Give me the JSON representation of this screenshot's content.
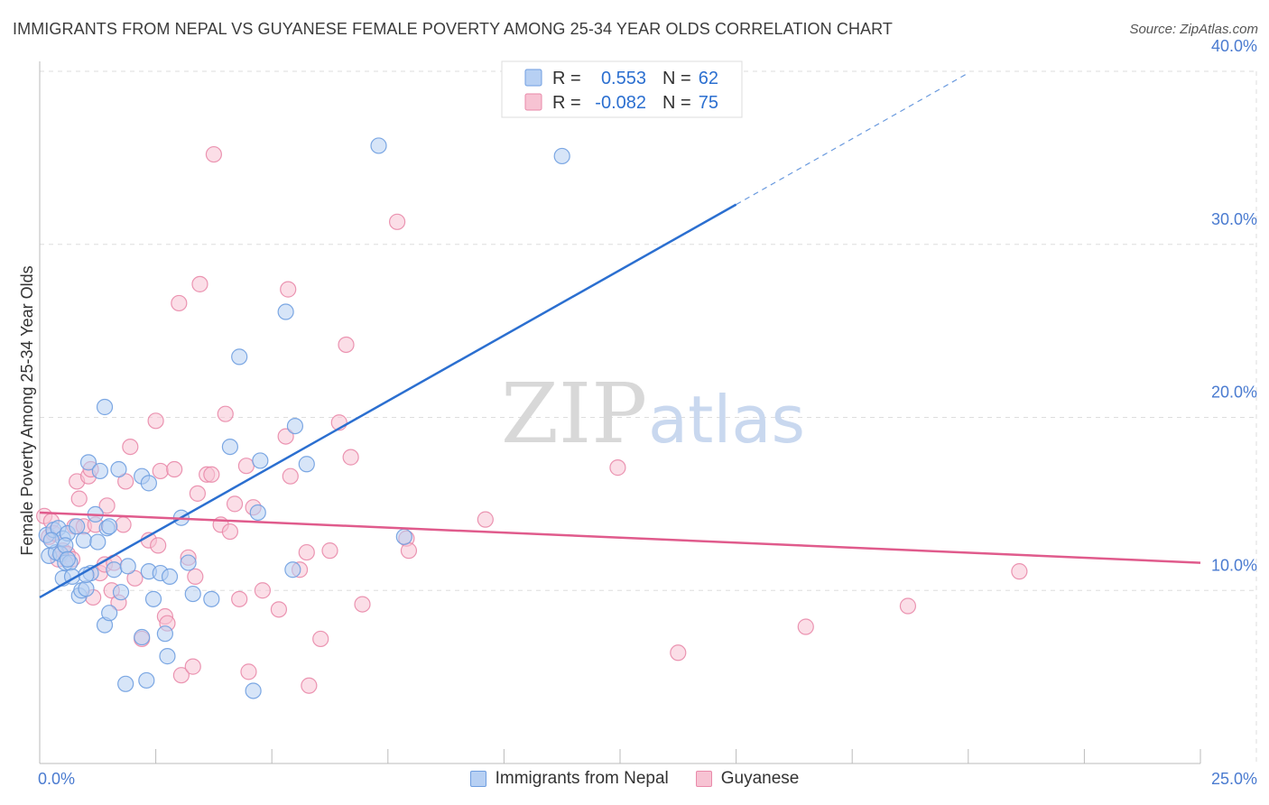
{
  "header": {
    "title": "IMMIGRANTS FROM NEPAL VS GUYANESE FEMALE POVERTY AMONG 25-34 YEAR OLDS CORRELATION CHART",
    "source": "Source: ZipAtlas.com"
  },
  "watermark": {
    "zip": "ZIP",
    "atlas": "atlas"
  },
  "colors": {
    "nepal_fill": "#b7d0f3",
    "nepal_stroke": "#6f9ee0",
    "nepal_line": "#2b6fd0",
    "guyanese_fill": "#f7c3d3",
    "guyanese_stroke": "#e98aaa",
    "guyanese_line": "#e05b8c",
    "tick_text": "#4a7bd0",
    "grid": "#dddddd"
  },
  "chart_data": {
    "type": "scatter",
    "title": "IMMIGRANTS FROM NEPAL VS GUYANESE FEMALE POVERTY AMONG 25-34 YEAR OLDS CORRELATION CHART",
    "xlabel": "",
    "ylabel": "Female Poverty Among 25-34 Year Olds",
    "xlim": [
      0,
      25
    ],
    "ylim": [
      0,
      40
    ],
    "x_tick_labels": [
      "0.0%",
      "25.0%"
    ],
    "y_ticks": [
      10,
      20,
      30,
      40
    ],
    "y_tick_labels": [
      "10.0%",
      "20.0%",
      "30.0%",
      "40.0%"
    ],
    "grid": true,
    "legend": {
      "position": "top-center",
      "entries": [
        {
          "r_label": "R =",
          "r_value": "0.553",
          "n_label": "N =",
          "n_value": "62"
        },
        {
          "r_label": "R =",
          "r_value": "-0.082",
          "n_label": "N =",
          "n_value": "75"
        }
      ]
    },
    "series": [
      {
        "name": "Immigrants from Nepal",
        "trend": {
          "x_start": 0,
          "y_start": 9.6,
          "x_end": 15,
          "y_end": 32.3,
          "dashed_to_x": 20,
          "dashed_to_y": 39.9
        },
        "points": [
          [
            0.15,
            13.2
          ],
          [
            0.2,
            12
          ],
          [
            0.3,
            13.5
          ],
          [
            0.35,
            12.2
          ],
          [
            0.4,
            13.6
          ],
          [
            0.45,
            12.1
          ],
          [
            0.5,
            13
          ],
          [
            0.5,
            10.7
          ],
          [
            0.55,
            11.6
          ],
          [
            0.6,
            13.3
          ],
          [
            0.65,
            11.6
          ],
          [
            0.7,
            10.8
          ],
          [
            0.8,
            13.7
          ],
          [
            0.85,
            9.7
          ],
          [
            0.9,
            10
          ],
          [
            0.95,
            12.9
          ],
          [
            1,
            10.1
          ],
          [
            1.05,
            17.4
          ],
          [
            1.1,
            11
          ],
          [
            1.2,
            14.4
          ],
          [
            1.25,
            12.8
          ],
          [
            1.3,
            16.9
          ],
          [
            1.4,
            8
          ],
          [
            1.45,
            13.6
          ],
          [
            1.5,
            8.7
          ],
          [
            1.5,
            13.7
          ],
          [
            1.6,
            11.2
          ],
          [
            1.7,
            17
          ],
          [
            1.75,
            9.9
          ],
          [
            1.85,
            4.6
          ],
          [
            1.9,
            11.4
          ],
          [
            2.2,
            16.6
          ],
          [
            2.2,
            7.3
          ],
          [
            2.3,
            4.8
          ],
          [
            2.35,
            11.1
          ],
          [
            2.45,
            9.5
          ],
          [
            2.6,
            11
          ],
          [
            2.7,
            7.5
          ],
          [
            2.75,
            6.2
          ],
          [
            2.8,
            10.8
          ],
          [
            3.05,
            14.2
          ],
          [
            3.2,
            11.6
          ],
          [
            3.3,
            9.8
          ],
          [
            3.7,
            9.5
          ],
          [
            4.1,
            18.3
          ],
          [
            4.3,
            23.5
          ],
          [
            4.6,
            4.2
          ],
          [
            4.7,
            14.5
          ],
          [
            4.75,
            17.5
          ],
          [
            5.3,
            26.1
          ],
          [
            5.45,
            11.2
          ],
          [
            5.5,
            19.5
          ],
          [
            5.75,
            17.3
          ],
          [
            7.3,
            35.7
          ],
          [
            7.85,
            13.1
          ],
          [
            11.25,
            35.1
          ],
          [
            0.25,
            12.9
          ],
          [
            0.55,
            12.6
          ],
          [
            1.4,
            20.6
          ],
          [
            2.35,
            16.2
          ],
          [
            0.6,
            11.8
          ],
          [
            1.0,
            10.9
          ]
        ]
      },
      {
        "name": "Guyanese",
        "trend": {
          "x_start": 0,
          "y_start": 14.5,
          "x_end": 25,
          "y_end": 11.6
        },
        "points": [
          [
            0.1,
            14.3
          ],
          [
            0.2,
            13.1
          ],
          [
            0.25,
            14
          ],
          [
            0.3,
            13.3
          ],
          [
            0.4,
            11.8
          ],
          [
            0.5,
            12.3
          ],
          [
            0.6,
            12.1
          ],
          [
            0.7,
            11.8
          ],
          [
            0.75,
            13.7
          ],
          [
            0.8,
            16.3
          ],
          [
            0.85,
            15.3
          ],
          [
            0.95,
            13.7
          ],
          [
            1.05,
            16.6
          ],
          [
            1.1,
            17
          ],
          [
            1.15,
            9.6
          ],
          [
            1.2,
            13.8
          ],
          [
            1.3,
            11
          ],
          [
            1.4,
            11.5
          ],
          [
            1.45,
            14.9
          ],
          [
            1.55,
            10
          ],
          [
            1.6,
            11.6
          ],
          [
            1.7,
            9.3
          ],
          [
            1.8,
            13.8
          ],
          [
            1.85,
            16.3
          ],
          [
            1.95,
            18.3
          ],
          [
            2.05,
            10.7
          ],
          [
            2.2,
            7.2
          ],
          [
            2.35,
            12.9
          ],
          [
            2.5,
            19.8
          ],
          [
            2.55,
            12.6
          ],
          [
            2.6,
            16.9
          ],
          [
            2.7,
            8.5
          ],
          [
            2.75,
            8.1
          ],
          [
            2.9,
            17
          ],
          [
            3,
            26.6
          ],
          [
            3.05,
            5.1
          ],
          [
            3.2,
            11.9
          ],
          [
            3.3,
            5.6
          ],
          [
            3.35,
            10.8
          ],
          [
            3.4,
            15.6
          ],
          [
            3.45,
            27.7
          ],
          [
            3.6,
            16.7
          ],
          [
            3.7,
            16.7
          ],
          [
            3.75,
            35.2
          ],
          [
            3.9,
            13.8
          ],
          [
            4.0,
            20.2
          ],
          [
            4.1,
            13.4
          ],
          [
            4.2,
            15
          ],
          [
            4.3,
            9.5
          ],
          [
            4.45,
            17.2
          ],
          [
            4.5,
            5.3
          ],
          [
            4.6,
            14.8
          ],
          [
            4.8,
            10
          ],
          [
            5.15,
            8.9
          ],
          [
            5.3,
            18.9
          ],
          [
            5.35,
            27.4
          ],
          [
            5.4,
            16.6
          ],
          [
            5.6,
            11.2
          ],
          [
            5.75,
            12.2
          ],
          [
            5.8,
            4.5
          ],
          [
            6.05,
            7.2
          ],
          [
            6.25,
            12.3
          ],
          [
            6.45,
            19.7
          ],
          [
            6.6,
            24.2
          ],
          [
            6.7,
            17.7
          ],
          [
            6.95,
            9.2
          ],
          [
            7.7,
            31.3
          ],
          [
            7.9,
            13
          ],
          [
            7.95,
            12.3
          ],
          [
            9.6,
            14.1
          ],
          [
            12.45,
            17.1
          ],
          [
            13.75,
            6.4
          ],
          [
            16.5,
            7.9
          ],
          [
            18.7,
            9.1
          ],
          [
            21.1,
            11.1
          ]
        ]
      }
    ]
  },
  "bottom_legend": [
    {
      "label": "Immigrants from Nepal"
    },
    {
      "label": "Guyanese"
    }
  ]
}
